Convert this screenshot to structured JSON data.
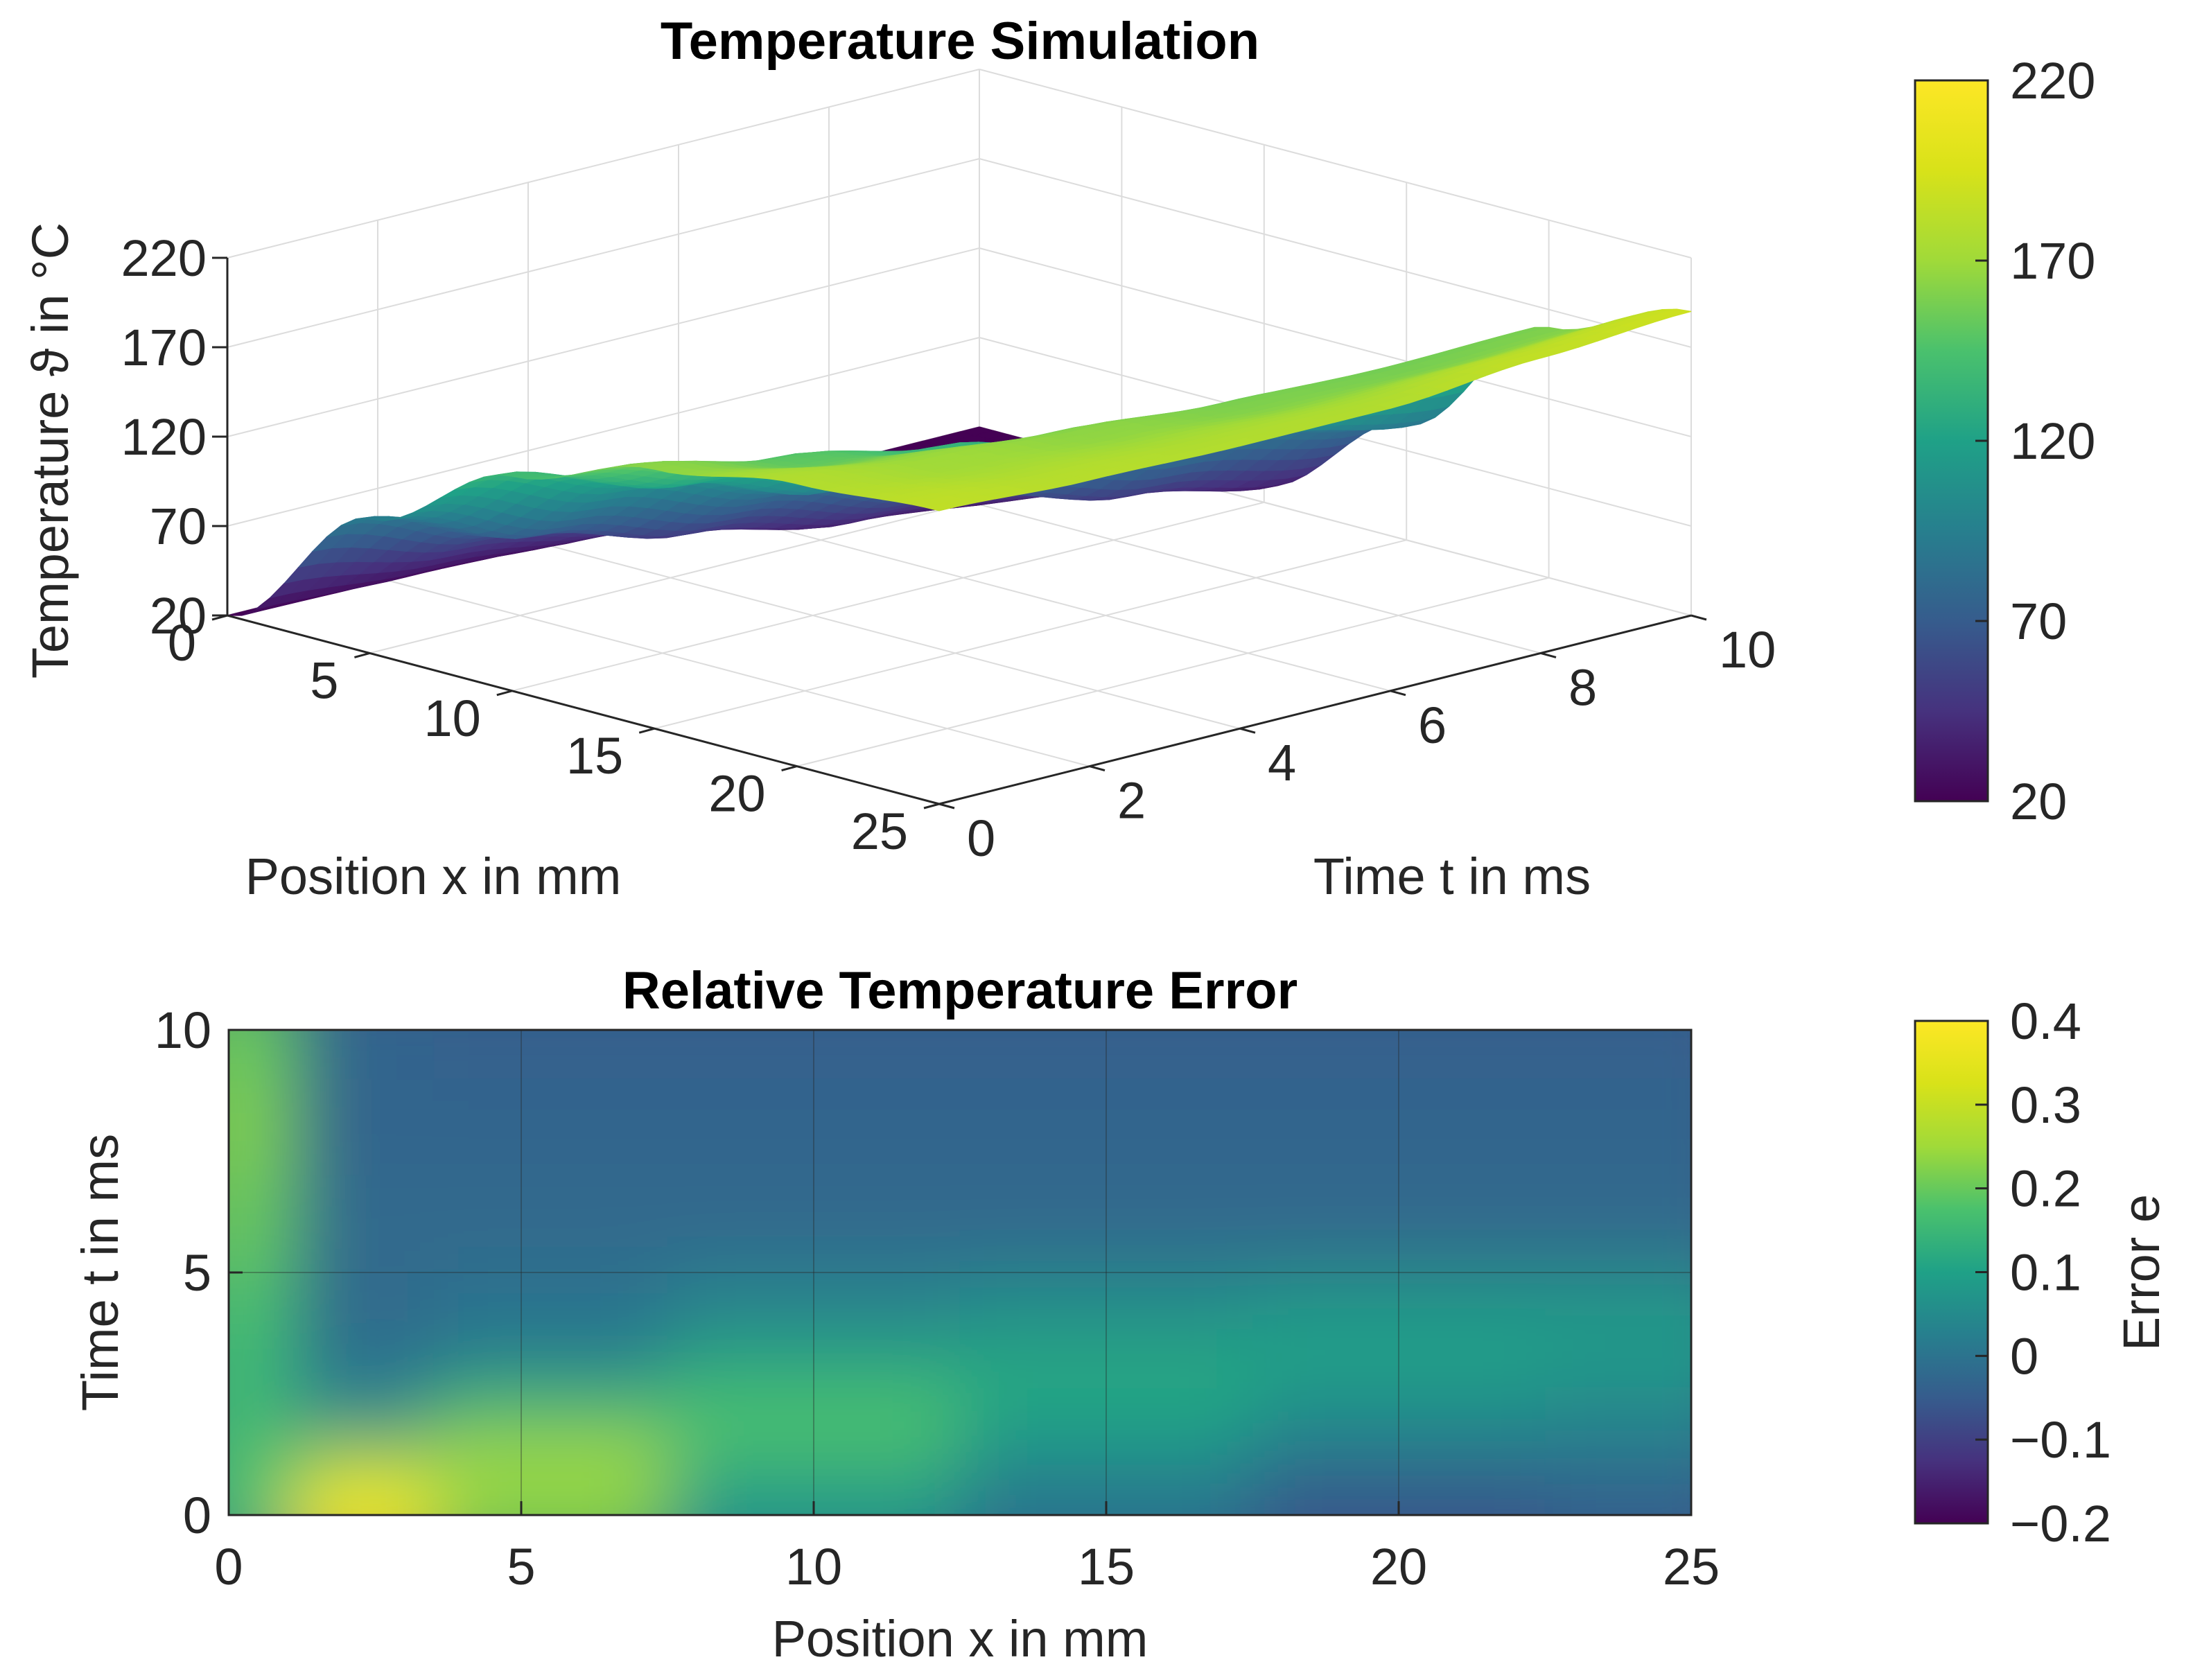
{
  "chart_data": [
    {
      "type": "surface",
      "title": "Temperature Simulation",
      "xlabel": "Position x in mm",
      "ylabel": "Time t in ms",
      "zlabel": "Temperature ϑ in °C",
      "xlim": [
        0,
        25
      ],
      "ylim": [
        0,
        10
      ],
      "zlim": [
        20,
        220
      ],
      "xticks": [
        0,
        5,
        10,
        15,
        20,
        25
      ],
      "yticks": [
        0,
        2,
        4,
        6,
        8,
        10
      ],
      "zticks": [
        20,
        70,
        120,
        170,
        220
      ],
      "grid": true,
      "colormap": "viridis",
      "surface_samples": {
        "x": [
          0,
          5,
          10,
          15,
          20,
          25
        ],
        "t": [
          0,
          2,
          4,
          6,
          8,
          10
        ],
        "temperature": [
          [
            20,
            95,
            140,
            165,
            178,
            184
          ],
          [
            20,
            65,
            115,
            150,
            170,
            180
          ],
          [
            20,
            45,
            90,
            135,
            165,
            178
          ],
          [
            20,
            30,
            65,
            115,
            160,
            178
          ],
          [
            20,
            24,
            45,
            100,
            158,
            185
          ],
          [
            20,
            20,
            30,
            85,
            160,
            190
          ]
        ]
      },
      "colorbar": {
        "ticks": [
          20,
          70,
          120,
          170,
          220
        ],
        "range": [
          20,
          220
        ],
        "label": ""
      }
    },
    {
      "type": "heatmap",
      "title": "Relative Temperature Error",
      "xlabel": "Position x in mm",
      "ylabel": "Time t in ms",
      "xlim": [
        0,
        25
      ],
      "ylim": [
        0,
        10
      ],
      "xticks": [
        0,
        5,
        10,
        15,
        20,
        25
      ],
      "yticks": [
        0,
        5,
        10
      ],
      "grid": true,
      "colormap": "viridis",
      "error_samples": {
        "x": [
          0.2,
          2,
          5,
          10,
          15,
          20,
          25
        ],
        "t": [
          0.5,
          1,
          2,
          3,
          4,
          6,
          8,
          10
        ],
        "error": [
          [
            0.15,
            0.38,
            0.22,
            0.08,
            0.0,
            -0.06,
            -0.04
          ],
          [
            0.18,
            0.25,
            0.28,
            0.15,
            0.06,
            0.0,
            0.0
          ],
          [
            0.15,
            0.05,
            0.18,
            0.18,
            0.1,
            0.05,
            0.04
          ],
          [
            0.16,
            0.0,
            0.04,
            0.12,
            0.12,
            0.1,
            0.08
          ],
          [
            0.17,
            -0.02,
            0.0,
            0.04,
            0.06,
            0.08,
            0.08
          ],
          [
            0.2,
            -0.02,
            -0.02,
            -0.02,
            -0.02,
            -0.02,
            -0.02
          ],
          [
            0.22,
            -0.03,
            -0.03,
            -0.03,
            -0.03,
            -0.03,
            -0.03
          ],
          [
            0.2,
            -0.03,
            -0.04,
            -0.04,
            -0.04,
            -0.04,
            -0.04
          ]
        ]
      },
      "colorbar": {
        "ticks": [
          0.4,
          0.3,
          0.2,
          0.1,
          0,
          -0.1,
          -0.2
        ],
        "tick_labels": [
          "0.4",
          "0.3",
          "0.2",
          "0.1",
          "0",
          "−0.1",
          "−0.2"
        ],
        "range": [
          -0.2,
          0.4
        ],
        "label": "Error e"
      }
    }
  ]
}
